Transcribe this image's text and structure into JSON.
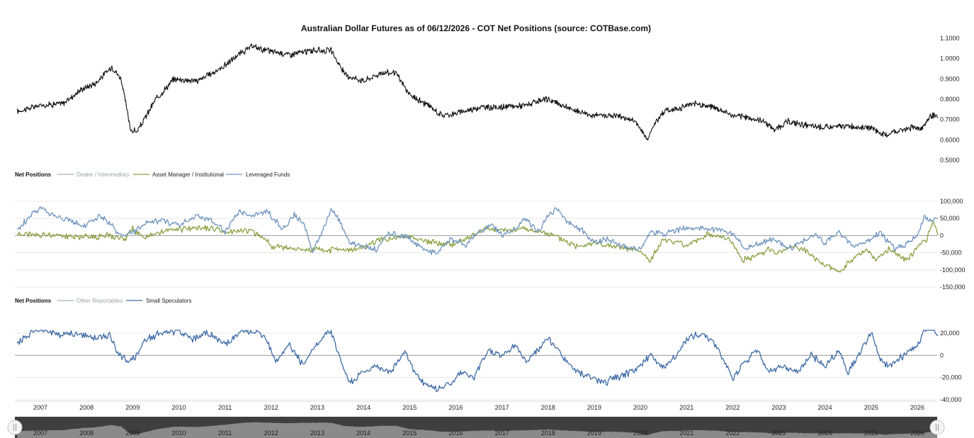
{
  "chart_data": [
    {
      "type": "line",
      "title": "Australian Dollar Futures as of 06/12/2026 - COT Net Positions (source: COTBase.com)",
      "ylim": [
        0.5,
        1.1
      ],
      "yticks": [
        "1.1000",
        "1.0000",
        "0.9000",
        "0.8000",
        "0.7000",
        "0.6000",
        "0.5000"
      ],
      "series": [
        {
          "color": "#111111",
          "x": [
            2006.5,
            2007.0,
            2007.5,
            2007.9,
            2008.2,
            2008.55,
            2008.75,
            2008.85,
            2008.95,
            2009.1,
            2009.5,
            2009.9,
            2010.4,
            2010.9,
            2011.3,
            2011.6,
            2011.9,
            2012.4,
            2012.9,
            2013.3,
            2013.6,
            2014.0,
            2014.4,
            2014.7,
            2015.0,
            2015.4,
            2015.7,
            2016.0,
            2016.5,
            2017.0,
            2017.5,
            2018.0,
            2018.5,
            2019.0,
            2019.5,
            2019.9,
            2020.15,
            2020.25,
            2020.5,
            2020.9,
            2021.2,
            2021.6,
            2022.0,
            2022.3,
            2022.7,
            2022.9,
            2023.2,
            2023.6,
            2024.0,
            2024.5,
            2024.8,
            2025.0,
            2025.3,
            2025.5,
            2025.9,
            2026.1,
            2026.3,
            2026.45
          ],
          "y": [
            0.74,
            0.77,
            0.78,
            0.85,
            0.88,
            0.96,
            0.9,
            0.78,
            0.65,
            0.64,
            0.8,
            0.9,
            0.89,
            0.95,
            1.02,
            1.06,
            1.04,
            1.02,
            1.04,
            1.04,
            0.92,
            0.89,
            0.93,
            0.93,
            0.82,
            0.77,
            0.72,
            0.73,
            0.76,
            0.76,
            0.77,
            0.8,
            0.75,
            0.72,
            0.72,
            0.69,
            0.6,
            0.66,
            0.74,
            0.76,
            0.78,
            0.76,
            0.72,
            0.71,
            0.69,
            0.65,
            0.69,
            0.67,
            0.66,
            0.67,
            0.66,
            0.66,
            0.62,
            0.64,
            0.66,
            0.66,
            0.72,
            0.71
          ]
        }
      ]
    },
    {
      "type": "line",
      "legend_title": "Net Positions",
      "ylim": [
        -150000,
        100000
      ],
      "yticks": [
        "100,000",
        "50,000",
        "0",
        "-50,000",
        "-100,000",
        "-150,000"
      ],
      "series": [
        {
          "name": "Dealer / Intermediary",
          "color": "#a8aeb0",
          "visible": false,
          "x": [],
          "y": []
        },
        {
          "name": "Asset Manager / Institutional",
          "color": "#8aa040",
          "x": [
            2006.5,
            2007.0,
            2007.5,
            2008.0,
            2008.5,
            2008.85,
            2009.0,
            2009.2,
            2009.5,
            2010.0,
            2010.4,
            2010.7,
            2011.0,
            2011.5,
            2011.8,
            2012.0,
            2012.5,
            2013.0,
            2013.5,
            2013.9,
            2014.2,
            2014.5,
            2015.0,
            2015.3,
            2015.6,
            2015.9,
            2016.3,
            2016.6,
            2017.0,
            2017.5,
            2018.0,
            2018.3,
            2018.6,
            2019.0,
            2019.5,
            2020.0,
            2020.2,
            2020.5,
            2021.0,
            2021.5,
            2021.8,
            2022.0,
            2022.2,
            2022.5,
            2022.8,
            2023.0,
            2023.3,
            2023.6,
            2023.9,
            2024.1,
            2024.3,
            2024.5,
            2024.7,
            2024.9,
            2025.1,
            2025.4,
            2025.6,
            2025.8,
            2026.0,
            2026.2,
            2026.35,
            2026.45
          ],
          "y": [
            5000,
            3000,
            0,
            -4000,
            0,
            -10000,
            20000,
            -5000,
            10000,
            18000,
            20000,
            22000,
            12000,
            15000,
            0,
            -30000,
            -40000,
            -42000,
            -42000,
            -40000,
            -20000,
            -10000,
            0,
            -15000,
            -22000,
            -25000,
            -5000,
            20000,
            15000,
            20000,
            5000,
            -10000,
            -30000,
            -20000,
            -35000,
            -45000,
            -75000,
            -10000,
            -30000,
            5000,
            -5000,
            -20000,
            -70000,
            -60000,
            -40000,
            -50000,
            -30000,
            -45000,
            -80000,
            -90000,
            -110000,
            -80000,
            -60000,
            -40000,
            -70000,
            -40000,
            -60000,
            -70000,
            -30000,
            -10000,
            40000,
            0
          ]
        },
        {
          "name": "Leveraged Funds",
          "color": "#6e93bd",
          "x": [
            2006.5,
            2006.8,
            2007.0,
            2007.4,
            2007.7,
            2008.0,
            2008.3,
            2008.6,
            2008.8,
            2009.0,
            2009.3,
            2009.6,
            2010.0,
            2010.4,
            2010.7,
            2011.0,
            2011.3,
            2011.6,
            2011.9,
            2012.1,
            2012.3,
            2012.5,
            2012.7,
            2012.9,
            2013.1,
            2013.3,
            2013.5,
            2013.7,
            2014.0,
            2014.3,
            2014.5,
            2014.7,
            2015.0,
            2015.3,
            2015.6,
            2015.9,
            2016.2,
            2016.5,
            2016.8,
            2017.0,
            2017.3,
            2017.5,
            2017.8,
            2018.0,
            2018.2,
            2018.4,
            2018.7,
            2019.0,
            2019.3,
            2019.6,
            2020.0,
            2020.2,
            2020.5,
            2021.0,
            2021.5,
            2021.8,
            2022.0,
            2022.3,
            2022.6,
            2022.9,
            2023.2,
            2023.5,
            2023.8,
            2024.0,
            2024.3,
            2024.6,
            2024.9,
            2025.2,
            2025.5,
            2025.8,
            2026.0,
            2026.15,
            2026.3,
            2026.45
          ],
          "y": [
            15000,
            60000,
            80000,
            55000,
            40000,
            30000,
            60000,
            20000,
            -5000,
            10000,
            35000,
            45000,
            30000,
            60000,
            45000,
            10000,
            70000,
            55000,
            75000,
            40000,
            20000,
            60000,
            40000,
            -50000,
            10000,
            80000,
            40000,
            -20000,
            -30000,
            -40000,
            0,
            5000,
            -10000,
            -40000,
            -50000,
            -10000,
            -30000,
            10000,
            30000,
            0,
            20000,
            50000,
            10000,
            60000,
            80000,
            40000,
            20000,
            -20000,
            -10000,
            -30000,
            -40000,
            10000,
            5000,
            20000,
            20000,
            15000,
            5000,
            -40000,
            -20000,
            -10000,
            -40000,
            -20000,
            5000,
            -20000,
            10000,
            -30000,
            -20000,
            10000,
            -40000,
            -20000,
            0,
            50000,
            45000,
            50000
          ]
        }
      ]
    },
    {
      "type": "line",
      "legend_title": "Net Positions",
      "ylim": [
        -40000,
        20000
      ],
      "yticks": [
        "20,000",
        "0",
        "-20,000",
        "-40,000"
      ],
      "series": [
        {
          "name": "Other Reportables",
          "color": "#a8aeb0",
          "visible": false,
          "x": [],
          "y": []
        },
        {
          "name": "Small Speculators",
          "color": "#3d6aa6",
          "x": [
            2006.5,
            2006.8,
            2007.0,
            2007.4,
            2007.8,
            2008.2,
            2008.5,
            2008.7,
            2008.9,
            2009.1,
            2009.3,
            2009.6,
            2010.0,
            2010.3,
            2010.6,
            2011.0,
            2011.3,
            2011.6,
            2011.9,
            2012.1,
            2012.4,
            2012.7,
            2012.9,
            2013.2,
            2013.3,
            2013.5,
            2013.7,
            2014.0,
            2014.3,
            2014.6,
            2014.9,
            2015.1,
            2015.3,
            2015.6,
            2015.9,
            2016.1,
            2016.4,
            2016.7,
            2017.0,
            2017.3,
            2017.5,
            2017.8,
            2018.0,
            2018.3,
            2018.6,
            2018.9,
            2019.2,
            2019.5,
            2019.8,
            2020.0,
            2020.2,
            2020.5,
            2020.8,
            2021.0,
            2021.3,
            2021.5,
            2021.7,
            2022.0,
            2022.3,
            2022.5,
            2022.8,
            2023.1,
            2023.4,
            2023.7,
            2024.0,
            2024.3,
            2024.5,
            2024.8,
            2025.0,
            2025.2,
            2025.4,
            2025.7,
            2026.0,
            2026.2,
            2026.35,
            2026.45
          ],
          "y": [
            10000,
            20000,
            24000,
            18000,
            20000,
            15000,
            18000,
            0,
            -5000,
            0,
            15000,
            20000,
            22000,
            15000,
            20000,
            10000,
            20000,
            22000,
            15000,
            -5000,
            10000,
            -10000,
            5000,
            20000,
            22000,
            -5000,
            -25000,
            -15000,
            -10000,
            -15000,
            5000,
            -15000,
            -25000,
            -30000,
            -25000,
            -15000,
            -20000,
            5000,
            0,
            10000,
            -5000,
            5000,
            15000,
            0,
            -15000,
            -20000,
            -25000,
            -20000,
            -15000,
            -10000,
            0,
            -10000,
            0,
            15000,
            20000,
            15000,
            5000,
            -20000,
            -5000,
            5000,
            -15000,
            -10000,
            -15000,
            0,
            -10000,
            5000,
            -15000,
            5000,
            20000,
            -5000,
            -10000,
            0,
            10000,
            25000,
            25000,
            18000
          ]
        }
      ]
    }
  ],
  "x_axis": {
    "years": [
      "2007",
      "2008",
      "2009",
      "2010",
      "2011",
      "2012",
      "2013",
      "2014",
      "2015",
      "2016",
      "2017",
      "2018",
      "2019",
      "2020",
      "2021",
      "2022",
      "2023",
      "2024",
      "2025",
      "2026"
    ]
  },
  "navigator": {
    "years": [
      "2007",
      "2008",
      "2009",
      "2010",
      "2011",
      "2012",
      "2013",
      "2014",
      "2015",
      "2016",
      "2017",
      "2018",
      "2019",
      "2020",
      "2021",
      "2022",
      "2023",
      "2024",
      "2025",
      "2026"
    ],
    "left_handle_icon": "handle-grip-icon",
    "right_handle_icon": "handle-grip-icon",
    "bg_color": "#3f3f3f",
    "area_color": "#8a8a8a"
  }
}
